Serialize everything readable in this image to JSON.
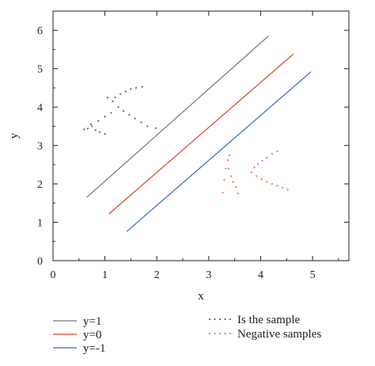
{
  "chart_data": {
    "type": "line",
    "xlabel": "x",
    "ylabel": "y",
    "xlim": [
      0,
      5.7
    ],
    "ylim": [
      0,
      6.5
    ],
    "x_ticks": [
      0,
      1,
      2,
      3,
      4,
      5
    ],
    "y_ticks": [
      0,
      1,
      2,
      3,
      4,
      5,
      6
    ],
    "grid": false,
    "legend_placement": "below",
    "series": [
      {
        "name": "y=1",
        "style": "line",
        "color": "#777777",
        "x": [
          0.65,
          4.15
        ],
        "y": [
          1.65,
          5.85
        ]
      },
      {
        "name": "y=0",
        "style": "line",
        "color": "#d9402a",
        "x": [
          1.08,
          4.63
        ],
        "y": [
          1.22,
          5.38
        ]
      },
      {
        "name": "y=-1",
        "style": "line",
        "color": "#3a6cc0",
        "x": [
          1.42,
          4.97
        ],
        "y": [
          0.76,
          4.92
        ]
      },
      {
        "name": "Is the sample",
        "style": "dotted",
        "color": "#666666",
        "x": [
          0.6,
          0.67,
          0.75,
          0.82,
          0.9,
          1.0,
          0.73,
          0.87,
          1.0,
          1.12,
          1.2,
          1.3,
          1.4,
          1.5,
          1.6,
          1.72,
          1.05,
          1.15,
          1.26,
          1.36,
          1.47,
          1.58,
          1.7,
          1.82,
          1.98
        ],
        "y": [
          3.42,
          3.44,
          3.5,
          3.4,
          3.35,
          3.3,
          3.55,
          3.64,
          3.75,
          3.85,
          4.25,
          4.34,
          4.4,
          4.47,
          4.5,
          4.53,
          4.25,
          4.15,
          4.0,
          3.9,
          3.8,
          3.7,
          3.6,
          3.5,
          3.45
        ]
      },
      {
        "name": "Negative samples",
        "style": "dotted",
        "color": "#e07a55",
        "x": [
          3.27,
          3.3,
          3.33,
          3.37,
          3.4,
          3.38,
          3.43,
          3.47,
          3.52,
          3.56,
          3.82,
          3.88,
          3.95,
          4.03,
          4.12,
          4.22,
          4.32,
          3.92,
          4.02,
          4.12,
          4.22,
          4.32,
          4.42,
          4.52
        ],
        "y": [
          1.77,
          2.1,
          2.4,
          2.62,
          2.75,
          2.4,
          2.2,
          2.05,
          1.92,
          1.75,
          2.3,
          2.43,
          2.52,
          2.6,
          2.68,
          2.78,
          2.85,
          2.2,
          2.12,
          2.05,
          2.0,
          1.95,
          1.9,
          1.85
        ]
      }
    ]
  }
}
